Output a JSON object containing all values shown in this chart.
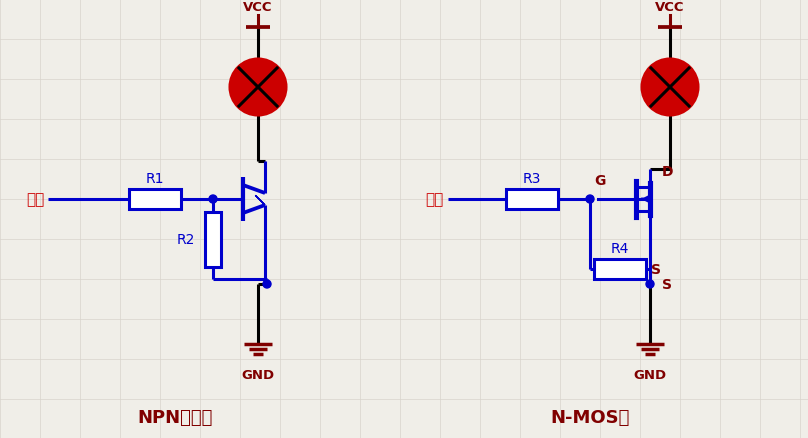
{
  "bg_color": "#f0eee8",
  "grid_color": "#d8d4cc",
  "line_color_blue": "#0000cc",
  "line_color_dark": "#000000",
  "red_color": "#cc0000",
  "vcc_color": "#800000",
  "gnd_color": "#800000",
  "lamp_color": "#cc0000",
  "title1": "NPN三极管",
  "title2": "N-MOS管",
  "label_input": "输入",
  "label_r1": "R1",
  "label_r2": "R2",
  "label_r3": "R3",
  "label_r4": "R4",
  "label_vcc": "VCC",
  "label_gnd": "GND",
  "label_g": "G",
  "label_d": "D",
  "label_s": "S",
  "figw": 8.08,
  "figh": 4.39,
  "dpi": 100
}
